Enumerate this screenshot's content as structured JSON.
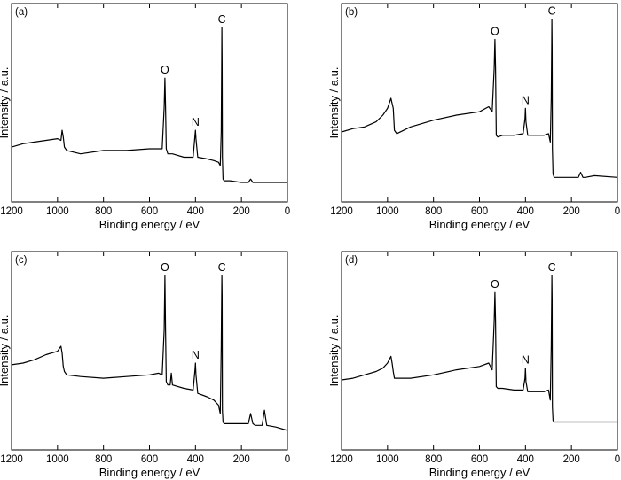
{
  "figure": {
    "colors": {
      "line": "#000000",
      "axis": "#000000",
      "background": "#ffffff"
    }
  },
  "chart_data": [
    {
      "type": "line",
      "panel_label": "(a)",
      "xlabel": "Binding energy / eV",
      "ylabel": "Intensity / a.u.",
      "x_reversed": true,
      "xlim": [
        1200,
        0
      ],
      "x_ticks": [
        1200,
        1000,
        800,
        600,
        400,
        200,
        0
      ],
      "ylim": [
        0,
        100
      ],
      "y_ticks_shown": false,
      "grid": false,
      "series": [
        {
          "x": [
            1200,
            1150,
            1100,
            1050,
            1000,
            985,
            980,
            975,
            970,
            960,
            900,
            800,
            700,
            600,
            560,
            545,
            536,
            533,
            530,
            527,
            520,
            500,
            450,
            410,
            402,
            400,
            398,
            390,
            350,
            320,
            300,
            292,
            288,
            286,
            285,
            284,
            283,
            280,
            275,
            250,
            200,
            170,
            160,
            150,
            140,
            100,
            0
          ],
          "y": [
            21,
            23,
            24,
            25,
            26,
            25,
            31,
            27,
            21,
            19,
            17,
            19,
            19,
            20,
            20,
            20,
            45,
            62,
            45,
            20,
            17,
            17,
            15,
            15,
            28,
            31,
            26,
            15,
            14,
            13,
            12,
            10,
            30,
            70,
            92,
            70,
            15,
            2,
            1,
            1,
            0,
            0,
            2,
            0,
            0,
            0,
            0
          ]
        }
      ],
      "annotations": [
        {
          "text": "O",
          "x": 533
        },
        {
          "text": "N",
          "x": 400
        },
        {
          "text": "C",
          "x": 285
        }
      ]
    },
    {
      "type": "line",
      "panel_label": "(b)",
      "xlabel": "Binding energy / eV",
      "ylabel": "Intensity / a.u.",
      "x_reversed": true,
      "xlim": [
        1200,
        0
      ],
      "x_ticks": [
        1200,
        1000,
        800,
        600,
        400,
        200,
        0
      ],
      "ylim": [
        0,
        100
      ],
      "y_ticks_shown": false,
      "grid": false,
      "series": [
        {
          "x": [
            1200,
            1150,
            1100,
            1050,
            1020,
            1000,
            985,
            980,
            975,
            970,
            960,
            900,
            800,
            700,
            600,
            560,
            545,
            536,
            533,
            530,
            527,
            520,
            500,
            450,
            410,
            402,
            400,
            398,
            390,
            350,
            320,
            300,
            292,
            288,
            286,
            285,
            284,
            283,
            280,
            275,
            250,
            200,
            170,
            160,
            150,
            140,
            100,
            0
          ],
          "y": [
            30,
            32,
            33,
            36,
            40,
            44,
            50,
            47,
            44,
            31,
            29,
            33,
            37,
            40,
            42,
            45,
            42,
            68,
            85,
            68,
            28,
            27,
            28,
            28,
            29,
            38,
            44,
            36,
            28,
            28,
            28,
            29,
            24,
            50,
            80,
            97,
            80,
            20,
            5,
            3,
            3,
            3,
            3,
            6,
            3,
            3,
            4,
            3
          ]
        }
      ],
      "annotations": [
        {
          "text": "O",
          "x": 533
        },
        {
          "text": "N",
          "x": 400
        },
        {
          "text": "C",
          "x": 285
        }
      ]
    },
    {
      "type": "line",
      "panel_label": "(c)",
      "xlabel": "Binding energy / eV",
      "ylabel": "Intensity / a.u.",
      "x_reversed": true,
      "xlim": [
        1200,
        0
      ],
      "x_ticks": [
        1200,
        1000,
        800,
        600,
        400,
        200,
        0
      ],
      "ylim": [
        0,
        100
      ],
      "y_ticks_shown": false,
      "grid": false,
      "series": [
        {
          "x": [
            1200,
            1150,
            1100,
            1050,
            1000,
            985,
            980,
            975,
            970,
            960,
            900,
            800,
            700,
            600,
            560,
            545,
            536,
            533,
            530,
            527,
            520,
            510,
            505,
            500,
            450,
            410,
            402,
            400,
            398,
            390,
            350,
            320,
            300,
            292,
            288,
            286,
            285,
            284,
            283,
            280,
            275,
            250,
            200,
            170,
            160,
            150,
            140,
            110,
            100,
            90,
            50,
            0
          ],
          "y": [
            39,
            40,
            42,
            45,
            47,
            50,
            46,
            38,
            35,
            33,
            32,
            31,
            32,
            33,
            34,
            33,
            60,
            92,
            60,
            29,
            27,
            27,
            34,
            27,
            25,
            24,
            36,
            40,
            33,
            22,
            20,
            18,
            15,
            10,
            50,
            80,
            92,
            80,
            12,
            5,
            4,
            4,
            4,
            4,
            10,
            4,
            3,
            3,
            12,
            3,
            2,
            0
          ]
        }
      ],
      "annotations": [
        {
          "text": "O",
          "x": 533
        },
        {
          "text": "N",
          "x": 400
        },
        {
          "text": "C",
          "x": 285
        }
      ]
    },
    {
      "type": "line",
      "panel_label": "(d)",
      "xlabel": "Binding energy / eV",
      "ylabel": "Intensity / a.u.",
      "x_reversed": true,
      "xlim": [
        1200,
        0
      ],
      "x_ticks": [
        1200,
        1000,
        800,
        600,
        400,
        200,
        0
      ],
      "ylim": [
        0,
        100
      ],
      "y_ticks_shown": false,
      "grid": false,
      "series": [
        {
          "x": [
            1200,
            1150,
            1100,
            1050,
            1020,
            1000,
            985,
            980,
            975,
            970,
            960,
            900,
            800,
            700,
            600,
            560,
            545,
            536,
            533,
            530,
            527,
            520,
            500,
            450,
            410,
            402,
            400,
            398,
            390,
            350,
            320,
            300,
            292,
            288,
            286,
            285,
            284,
            283,
            280,
            275,
            250,
            200,
            150,
            100,
            0
          ],
          "y": [
            30,
            31,
            33,
            35,
            37,
            40,
            44,
            40,
            35,
            31,
            31,
            31,
            33,
            36,
            38,
            40,
            36,
            65,
            82,
            65,
            26,
            25,
            25,
            24,
            24,
            31,
            37,
            29,
            23,
            23,
            23,
            24,
            18,
            50,
            78,
            92,
            78,
            14,
            6,
            5,
            5,
            5,
            5,
            5,
            5
          ]
        }
      ],
      "annotations": [
        {
          "text": "O",
          "x": 533
        },
        {
          "text": "N",
          "x": 400
        },
        {
          "text": "C",
          "x": 285
        }
      ]
    }
  ]
}
